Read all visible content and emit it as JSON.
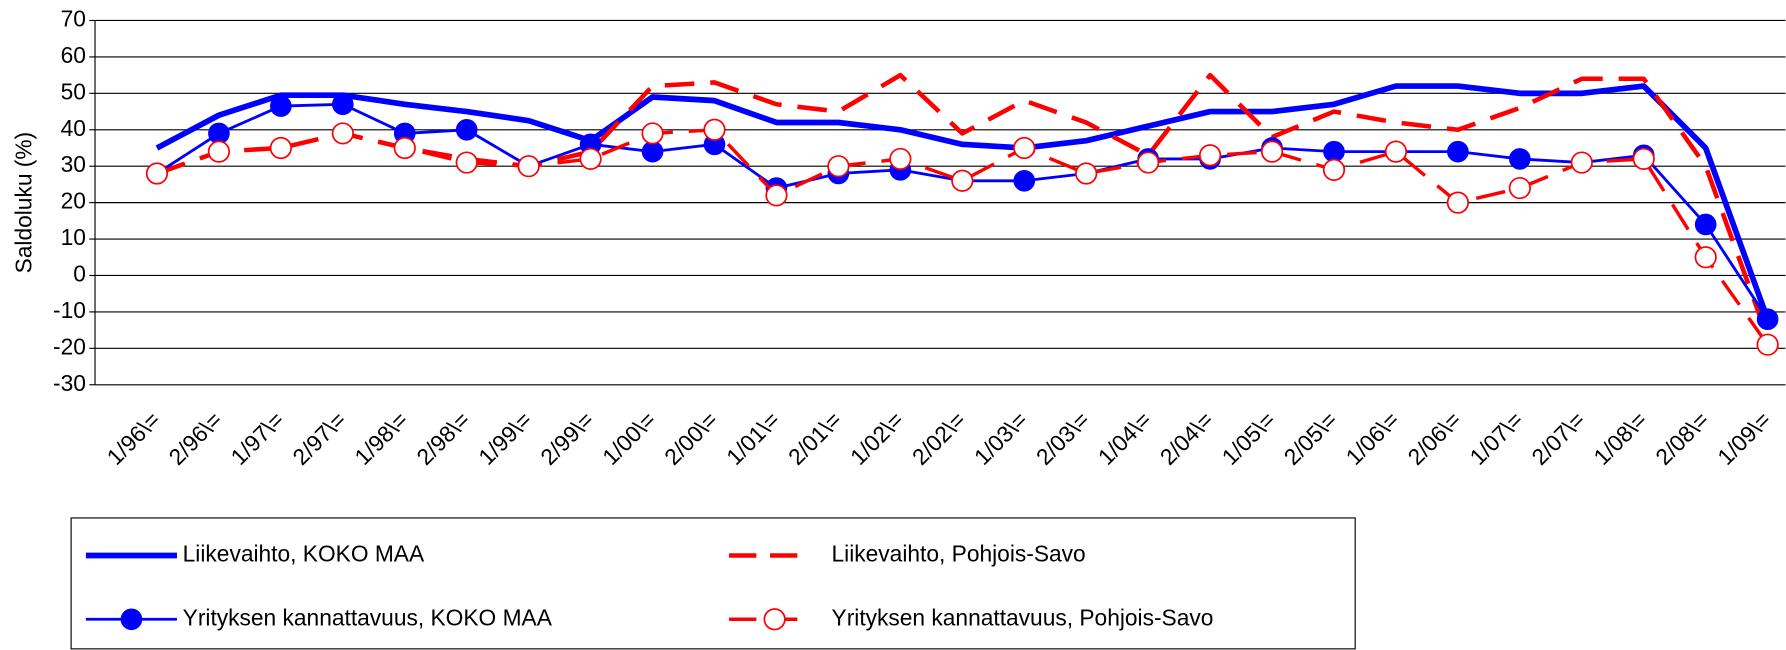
{
  "chart_data": {
    "type": "line",
    "ylabel": "Saldoluku (%)",
    "categories": [
      "1/96\\=",
      "2/96\\=",
      "1/97\\=",
      "2/97\\=",
      "1/98\\=",
      "2/98\\=",
      "1/99\\=",
      "2/99\\=",
      "1/00\\=",
      "2/00\\=",
      "1/01\\=",
      "2/01\\=",
      "1/02\\=",
      "2/02\\=",
      "1/03\\=",
      "2/03\\=",
      "1/04\\=",
      "2/04\\=",
      "1/05\\=",
      "2/05\\=",
      "1/06\\=",
      "2/06\\=",
      "1/07\\=",
      "2/07\\=",
      "1/08\\=",
      "2/08\\=",
      "1/09\\="
    ],
    "series": [
      {
        "name": "Liikevaihto, KOKO MAA",
        "color": "#0000ff",
        "width": 5,
        "dashed": false,
        "marker": null,
        "values": [
          35,
          44,
          49.5,
          49.5,
          47,
          45,
          42.5,
          37,
          49,
          48,
          42,
          42,
          40,
          36,
          35,
          37,
          41,
          45,
          45,
          47,
          52,
          52,
          50,
          50,
          52,
          35,
          -12
        ]
      },
      {
        "name": "Liikevaihto, Pohjois-Savo",
        "color": "#ff0000",
        "width": 4,
        "dashed": true,
        "marker": null,
        "values": [
          28,
          34,
          35,
          39,
          35,
          32,
          30,
          34,
          52,
          53,
          47,
          45,
          55,
          39,
          48,
          42,
          33,
          55,
          38,
          45,
          42,
          40,
          46,
          54,
          54,
          30,
          -17
        ]
      },
      {
        "name": "Yrityksen kannattavuus, KOKO MAA",
        "color": "#0000ff",
        "width": 2.5,
        "dashed": false,
        "marker": "filled",
        "values": [
          28,
          39,
          46.5,
          47,
          39,
          40,
          30,
          36,
          34,
          36,
          24,
          28,
          29,
          26,
          26,
          28,
          32,
          32,
          35,
          34,
          34,
          34,
          32,
          31,
          33,
          14,
          -12
        ]
      },
      {
        "name": "Yrityksen kannattavuus, Pohjois-Savo",
        "color": "#ff0000",
        "width": 3,
        "dashed": true,
        "marker": "open",
        "values": [
          28,
          34,
          35,
          39,
          35,
          31,
          30,
          32,
          39,
          40,
          22,
          30,
          32,
          26,
          35,
          28,
          31,
          33,
          34,
          29,
          34,
          20,
          24,
          31,
          32,
          5,
          -19
        ]
      }
    ],
    "ylim": [
      -30,
      70
    ],
    "yticks": [
      -30,
      -20,
      -10,
      0,
      10,
      20,
      30,
      40,
      50,
      60,
      70
    ],
    "grid": true,
    "legend": "bottom"
  }
}
